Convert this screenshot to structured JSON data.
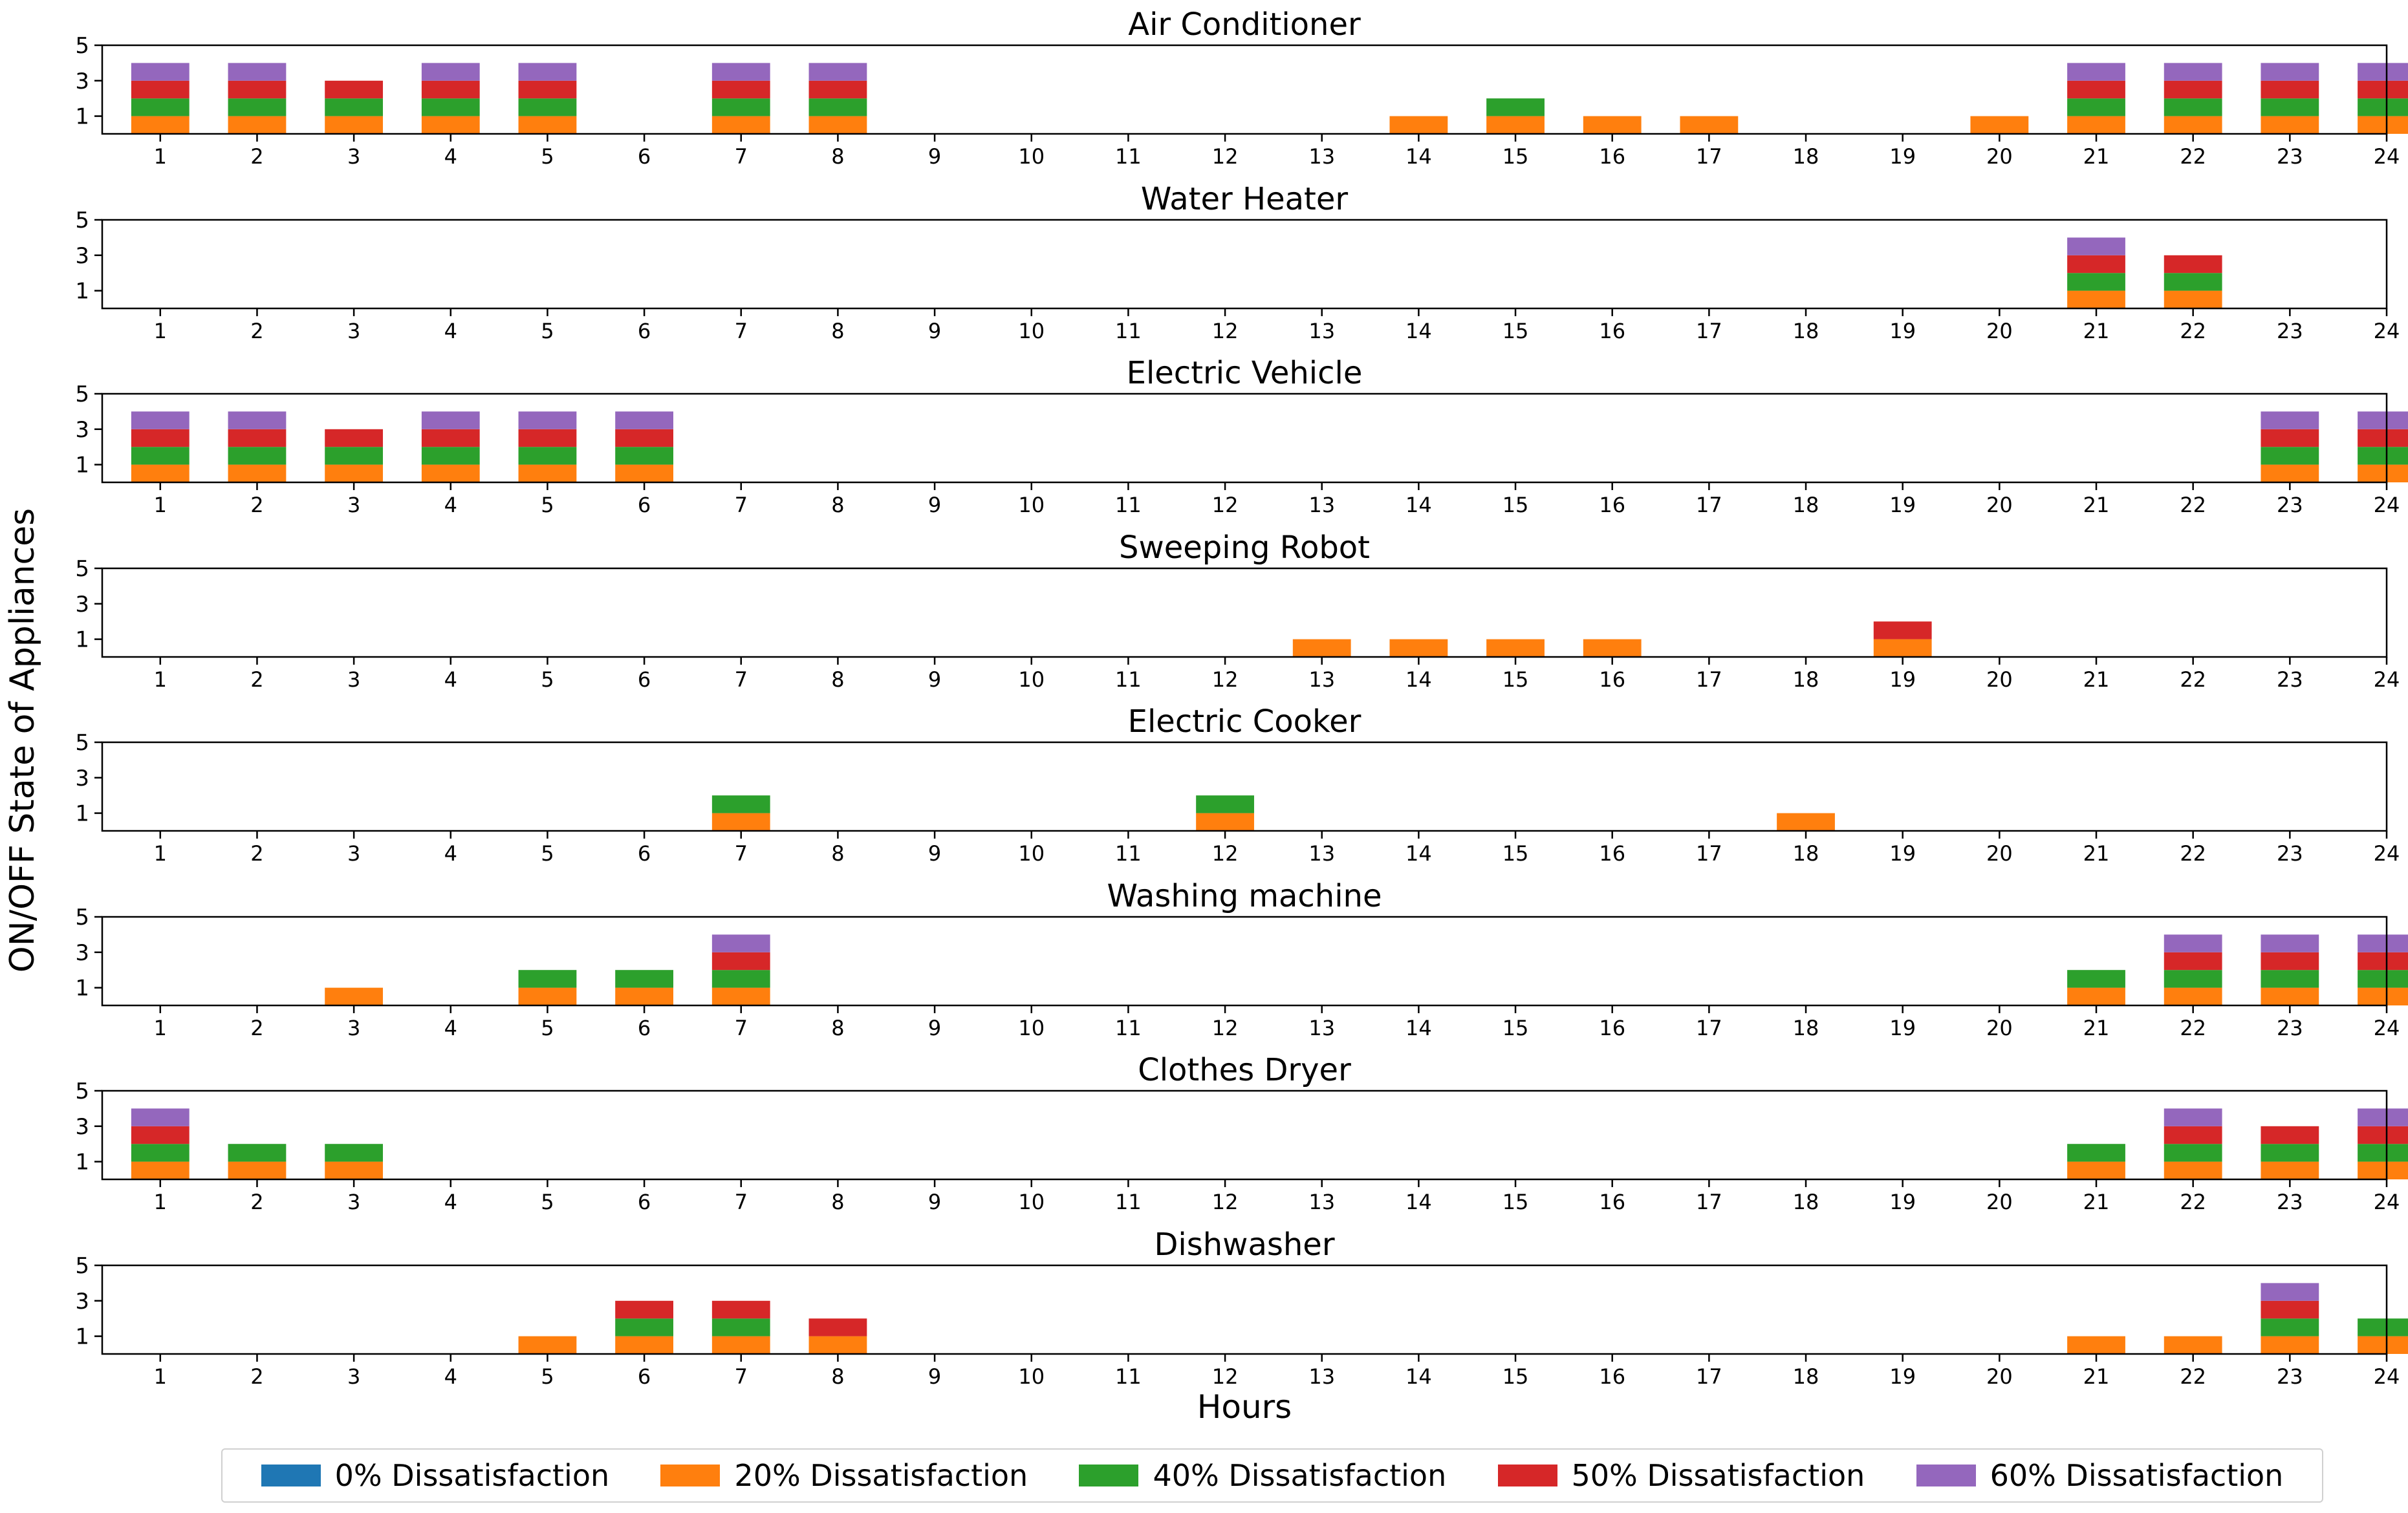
{
  "chart_data": {
    "type": "bar",
    "stacked": true,
    "ylabel": "ON/OFF State of Appliances",
    "xlabel": "Hours",
    "x": [
      1,
      2,
      3,
      4,
      5,
      6,
      7,
      8,
      9,
      10,
      11,
      12,
      13,
      14,
      15,
      16,
      17,
      18,
      19,
      20,
      21,
      22,
      23,
      24
    ],
    "ylim": [
      0,
      5
    ],
    "yticks": [
      1,
      3,
      5
    ],
    "legend_position": "bottom",
    "series": [
      {
        "name": "0% Dissatisfaction",
        "color": "#1f77b4"
      },
      {
        "name": "20% Dissatisfaction",
        "color": "#ff7f0e"
      },
      {
        "name": "40% Dissatisfaction",
        "color": "#2ca02c"
      },
      {
        "name": "50% Dissatisfaction",
        "color": "#d62728"
      },
      {
        "name": "60% Dissatisfaction",
        "color": "#9467bd"
      }
    ],
    "panels": [
      {
        "title": "Air Conditioner",
        "values": {
          "0%": [
            0,
            0,
            0,
            0,
            0,
            0,
            0,
            0,
            0,
            0,
            0,
            0,
            0,
            0,
            0,
            0,
            0,
            0,
            0,
            0,
            0,
            0,
            0,
            0
          ],
          "20%": [
            1,
            1,
            1,
            1,
            1,
            0,
            1,
            1,
            0,
            0,
            0,
            0,
            0,
            1,
            1,
            1,
            1,
            0,
            0,
            1,
            1,
            1,
            1,
            1
          ],
          "40%": [
            1,
            1,
            1,
            1,
            1,
            0,
            1,
            1,
            0,
            0,
            0,
            0,
            0,
            0,
            1,
            0,
            0,
            0,
            0,
            0,
            1,
            1,
            1,
            1
          ],
          "50%": [
            1,
            1,
            1,
            1,
            1,
            0,
            1,
            1,
            0,
            0,
            0,
            0,
            0,
            0,
            0,
            0,
            0,
            0,
            0,
            0,
            1,
            1,
            1,
            1
          ],
          "60%": [
            1,
            1,
            0,
            1,
            1,
            0,
            1,
            1,
            0,
            0,
            0,
            0,
            0,
            0,
            0,
            0,
            0,
            0,
            0,
            0,
            1,
            1,
            1,
            1
          ]
        }
      },
      {
        "title": "Water Heater",
        "values": {
          "0%": [
            0,
            0,
            0,
            0,
            0,
            0,
            0,
            0,
            0,
            0,
            0,
            0,
            0,
            0,
            0,
            0,
            0,
            0,
            0,
            0,
            0,
            0,
            0,
            0
          ],
          "20%": [
            0,
            0,
            0,
            0,
            0,
            0,
            0,
            0,
            0,
            0,
            0,
            0,
            0,
            0,
            0,
            0,
            0,
            0,
            0,
            0,
            1,
            1,
            0,
            0
          ],
          "40%": [
            0,
            0,
            0,
            0,
            0,
            0,
            0,
            0,
            0,
            0,
            0,
            0,
            0,
            0,
            0,
            0,
            0,
            0,
            0,
            0,
            1,
            1,
            0,
            0
          ],
          "50%": [
            0,
            0,
            0,
            0,
            0,
            0,
            0,
            0,
            0,
            0,
            0,
            0,
            0,
            0,
            0,
            0,
            0,
            0,
            0,
            0,
            1,
            1,
            0,
            0
          ],
          "60%": [
            0,
            0,
            0,
            0,
            0,
            0,
            0,
            0,
            0,
            0,
            0,
            0,
            0,
            0,
            0,
            0,
            0,
            0,
            0,
            0,
            1,
            0,
            0,
            0
          ]
        }
      },
      {
        "title": "Electric Vehicle",
        "values": {
          "0%": [
            0,
            0,
            0,
            0,
            0,
            0,
            0,
            0,
            0,
            0,
            0,
            0,
            0,
            0,
            0,
            0,
            0,
            0,
            0,
            0,
            0,
            0,
            0,
            0
          ],
          "20%": [
            1,
            1,
            1,
            1,
            1,
            1,
            0,
            0,
            0,
            0,
            0,
            0,
            0,
            0,
            0,
            0,
            0,
            0,
            0,
            0,
            0,
            0,
            1,
            1
          ],
          "40%": [
            1,
            1,
            1,
            1,
            1,
            1,
            0,
            0,
            0,
            0,
            0,
            0,
            0,
            0,
            0,
            0,
            0,
            0,
            0,
            0,
            0,
            0,
            1,
            1
          ],
          "50%": [
            1,
            1,
            1,
            1,
            1,
            1,
            0,
            0,
            0,
            0,
            0,
            0,
            0,
            0,
            0,
            0,
            0,
            0,
            0,
            0,
            0,
            0,
            1,
            1
          ],
          "60%": [
            1,
            1,
            0,
            1,
            1,
            1,
            0,
            0,
            0,
            0,
            0,
            0,
            0,
            0,
            0,
            0,
            0,
            0,
            0,
            0,
            0,
            0,
            1,
            1
          ]
        }
      },
      {
        "title": "Sweeping Robot",
        "values": {
          "0%": [
            0,
            0,
            0,
            0,
            0,
            0,
            0,
            0,
            0,
            0,
            0,
            0,
            0,
            0,
            0,
            0,
            0,
            0,
            0,
            0,
            0,
            0,
            0,
            0
          ],
          "20%": [
            0,
            0,
            0,
            0,
            0,
            0,
            0,
            0,
            0,
            0,
            0,
            0,
            1,
            1,
            1,
            1,
            0,
            0,
            1,
            0,
            0,
            0,
            0,
            0
          ],
          "40%": [
            0,
            0,
            0,
            0,
            0,
            0,
            0,
            0,
            0,
            0,
            0,
            0,
            0,
            0,
            0,
            0,
            0,
            0,
            0,
            0,
            0,
            0,
            0,
            0
          ],
          "50%": [
            0,
            0,
            0,
            0,
            0,
            0,
            0,
            0,
            0,
            0,
            0,
            0,
            0,
            0,
            0,
            0,
            0,
            0,
            1,
            0,
            0,
            0,
            0,
            0
          ],
          "60%": [
            0,
            0,
            0,
            0,
            0,
            0,
            0,
            0,
            0,
            0,
            0,
            0,
            0,
            0,
            0,
            0,
            0,
            0,
            0,
            0,
            0,
            0,
            0,
            0
          ]
        }
      },
      {
        "title": "Electric Cooker",
        "values": {
          "0%": [
            0,
            0,
            0,
            0,
            0,
            0,
            0,
            0,
            0,
            0,
            0,
            0,
            0,
            0,
            0,
            0,
            0,
            0,
            0,
            0,
            0,
            0,
            0,
            0
          ],
          "20%": [
            0,
            0,
            0,
            0,
            0,
            0,
            1,
            0,
            0,
            0,
            0,
            1,
            0,
            0,
            0,
            0,
            0,
            1,
            0,
            0,
            0,
            0,
            0,
            0
          ],
          "40%": [
            0,
            0,
            0,
            0,
            0,
            0,
            1,
            0,
            0,
            0,
            0,
            1,
            0,
            0,
            0,
            0,
            0,
            0,
            0,
            0,
            0,
            0,
            0,
            0
          ],
          "50%": [
            0,
            0,
            0,
            0,
            0,
            0,
            0,
            0,
            0,
            0,
            0,
            0,
            0,
            0,
            0,
            0,
            0,
            0,
            0,
            0,
            0,
            0,
            0,
            0
          ],
          "60%": [
            0,
            0,
            0,
            0,
            0,
            0,
            0,
            0,
            0,
            0,
            0,
            0,
            0,
            0,
            0,
            0,
            0,
            0,
            0,
            0,
            0,
            0,
            0,
            0
          ]
        }
      },
      {
        "title": "Washing machine",
        "values": {
          "0%": [
            0,
            0,
            0,
            0,
            0,
            0,
            0,
            0,
            0,
            0,
            0,
            0,
            0,
            0,
            0,
            0,
            0,
            0,
            0,
            0,
            0,
            0,
            0,
            0
          ],
          "20%": [
            0,
            0,
            1,
            0,
            1,
            1,
            1,
            0,
            0,
            0,
            0,
            0,
            0,
            0,
            0,
            0,
            0,
            0,
            0,
            0,
            1,
            1,
            1,
            1
          ],
          "40%": [
            0,
            0,
            0,
            0,
            1,
            1,
            1,
            0,
            0,
            0,
            0,
            0,
            0,
            0,
            0,
            0,
            0,
            0,
            0,
            0,
            1,
            1,
            1,
            1
          ],
          "50%": [
            0,
            0,
            0,
            0,
            0,
            0,
            1,
            0,
            0,
            0,
            0,
            0,
            0,
            0,
            0,
            0,
            0,
            0,
            0,
            0,
            0,
            1,
            1,
            1
          ],
          "60%": [
            0,
            0,
            0,
            0,
            0,
            0,
            1,
            0,
            0,
            0,
            0,
            0,
            0,
            0,
            0,
            0,
            0,
            0,
            0,
            0,
            0,
            1,
            1,
            1
          ]
        }
      },
      {
        "title": "Clothes Dryer",
        "values": {
          "0%": [
            0,
            0,
            0,
            0,
            0,
            0,
            0,
            0,
            0,
            0,
            0,
            0,
            0,
            0,
            0,
            0,
            0,
            0,
            0,
            0,
            0,
            0,
            0,
            0
          ],
          "20%": [
            1,
            1,
            1,
            0,
            0,
            0,
            0,
            0,
            0,
            0,
            0,
            0,
            0,
            0,
            0,
            0,
            0,
            0,
            0,
            0,
            1,
            1,
            1,
            1
          ],
          "40%": [
            1,
            1,
            1,
            0,
            0,
            0,
            0,
            0,
            0,
            0,
            0,
            0,
            0,
            0,
            0,
            0,
            0,
            0,
            0,
            0,
            1,
            1,
            1,
            1
          ],
          "50%": [
            1,
            0,
            0,
            0,
            0,
            0,
            0,
            0,
            0,
            0,
            0,
            0,
            0,
            0,
            0,
            0,
            0,
            0,
            0,
            0,
            0,
            1,
            1,
            1
          ],
          "60%": [
            1,
            0,
            0,
            0,
            0,
            0,
            0,
            0,
            0,
            0,
            0,
            0,
            0,
            0,
            0,
            0,
            0,
            0,
            0,
            0,
            0,
            1,
            0,
            1
          ]
        }
      },
      {
        "title": "Dishwasher",
        "values": {
          "0%": [
            0,
            0,
            0,
            0,
            0,
            0,
            0,
            0,
            0,
            0,
            0,
            0,
            0,
            0,
            0,
            0,
            0,
            0,
            0,
            0,
            0,
            0,
            0,
            0
          ],
          "20%": [
            0,
            0,
            0,
            0,
            1,
            1,
            1,
            1,
            0,
            0,
            0,
            0,
            0,
            0,
            0,
            0,
            0,
            0,
            0,
            0,
            1,
            1,
            1,
            1
          ],
          "40%": [
            0,
            0,
            0,
            0,
            0,
            1,
            1,
            0,
            0,
            0,
            0,
            0,
            0,
            0,
            0,
            0,
            0,
            0,
            0,
            0,
            0,
            0,
            1,
            1
          ],
          "50%": [
            0,
            0,
            0,
            0,
            0,
            1,
            1,
            1,
            0,
            0,
            0,
            0,
            0,
            0,
            0,
            0,
            0,
            0,
            0,
            0,
            0,
            0,
            1,
            0
          ],
          "60%": [
            0,
            0,
            0,
            0,
            0,
            0,
            0,
            0,
            0,
            0,
            0,
            0,
            0,
            0,
            0,
            0,
            0,
            0,
            0,
            0,
            0,
            0,
            1,
            0
          ]
        }
      }
    ]
  }
}
